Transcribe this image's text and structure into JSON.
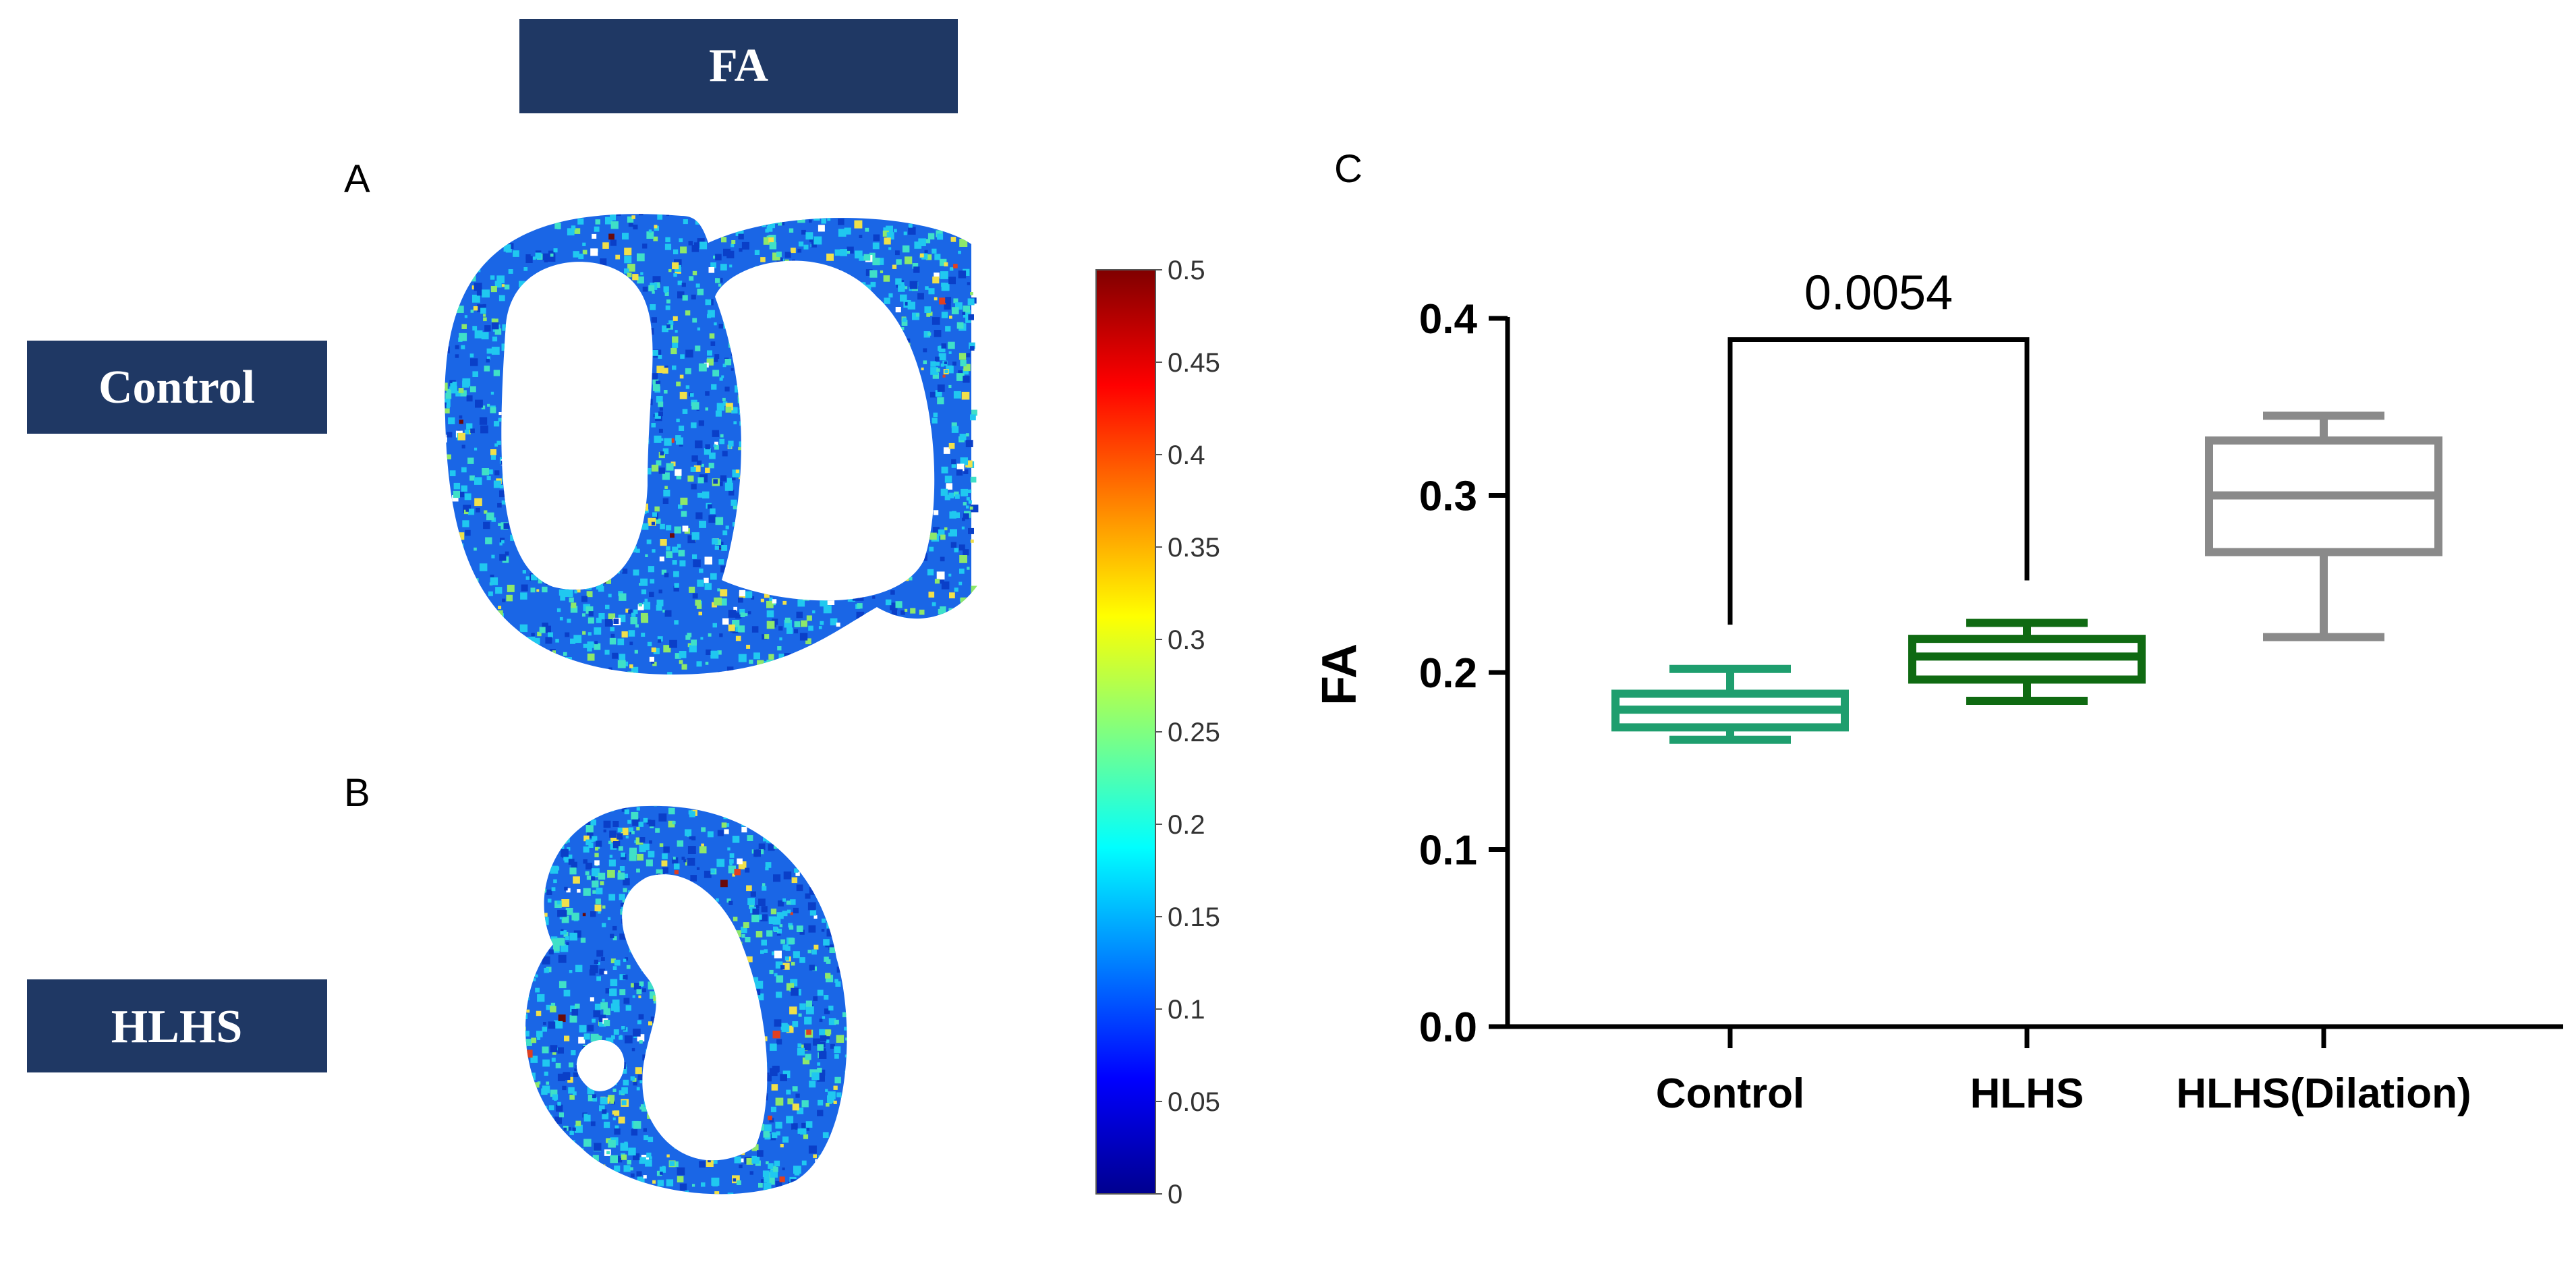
{
  "header": {
    "title": "FA"
  },
  "row_labels": {
    "control": "Control",
    "hlhs": "HLHS"
  },
  "panels": {
    "a": "A",
    "b": "B",
    "c": "C"
  },
  "colorbar": {
    "ticks": [
      "0.5",
      "0.45",
      "0.4",
      "0.35",
      "0.3",
      "0.25",
      "0.2",
      "0.15",
      "0.1",
      "0.05",
      "0"
    ],
    "colors": [
      "#00008f",
      "#0000ff",
      "#0080ff",
      "#00ffff",
      "#80ff80",
      "#ffff00",
      "#ff8000",
      "#ff0000",
      "#800000"
    ]
  },
  "maps": {
    "base_color": "#1a66e6",
    "accent_colors": [
      "#20c8f0",
      "#3fe0c8",
      "#0a3fc8",
      "#8ee86a",
      "#f0e04a",
      "#e04020",
      "#6a0a0a"
    ]
  },
  "chart_data": {
    "type": "box",
    "ylabel": "FA",
    "ylim": [
      0.0,
      0.4
    ],
    "yticks": [
      "0.0",
      "0.1",
      "0.2",
      "0.3",
      "0.4"
    ],
    "categories": [
      "Control",
      "HLHS",
      "HLHS(Dilation)"
    ],
    "boxes": [
      {
        "name": "Control",
        "color": "#1e9e6e",
        "min": 0.162,
        "q1": 0.169,
        "median": 0.179,
        "q3": 0.188,
        "max": 0.202
      },
      {
        "name": "HLHS",
        "color": "#0f6a12",
        "min": 0.184,
        "q1": 0.196,
        "median": 0.209,
        "q3": 0.219,
        "max": 0.228
      },
      {
        "name": "HLHS(Dilation)",
        "color": "#8a8a8a",
        "min": 0.22,
        "q1": 0.268,
        "median": 0.3,
        "q3": 0.331,
        "max": 0.345
      }
    ],
    "comparison": {
      "groups": [
        "Control",
        "HLHS"
      ],
      "p_value": "0.0054"
    }
  }
}
